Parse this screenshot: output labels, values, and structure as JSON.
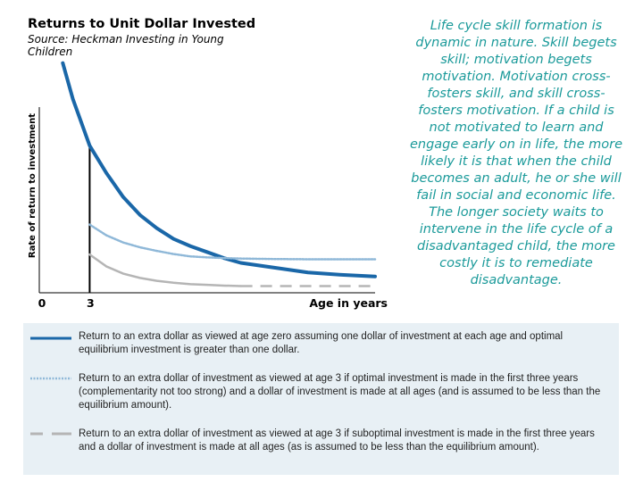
{
  "header": {
    "title": "Returns to Unit Dollar Invested",
    "source": "Source: Heckman Investing in Young Children"
  },
  "quote": "Life cycle skill formation is dynamic in nature. Skill begets skill; motivation begets motivation. Motivation cross-fosters skill, and skill cross-fosters motivation. If a child is not motivated to learn and engage early on in life, the more likely it is that when the child becomes an adult, he or she will fail in social and economic life. The longer society waits to intervene in the life cycle of a disadvantaged child, the more costly it is to remediate disadvantage.",
  "colors": {
    "quote": "#1b9a9a",
    "series_solid": "#1a67a8",
    "series_dotted": "#8fb8d8",
    "series_dashed": "#b5b5b5",
    "legend_bg": "#e8f0f5"
  },
  "chart_data": {
    "type": "line",
    "title": "Returns to Unit Dollar Invested",
    "xlabel": "Age in years",
    "ylabel": "Rate of return to investment",
    "x_ticks": [
      {
        "value": 0,
        "label": "0"
      },
      {
        "value": 3,
        "label": "3"
      }
    ],
    "xlim": [
      0,
      20
    ],
    "ylim": [
      0,
      10
    ],
    "marker_x": 3,
    "series": [
      {
        "name": "Return to an extra dollar as viewed at age zero assuming one dollar of investment at each age and optimal equilibrium investment is greater than one dollar.",
        "style": "solid",
        "x": [
          1.4,
          2.0,
          3.0,
          4.0,
          5.0,
          6.0,
          7.0,
          8.0,
          9.0,
          10.0,
          11.0,
          12.0,
          14.0,
          16.0,
          18.0,
          20.0
        ],
        "y": [
          9.6,
          8.1,
          6.15,
          5.0,
          4.0,
          3.25,
          2.7,
          2.25,
          1.95,
          1.7,
          1.45,
          1.25,
          1.05,
          0.85,
          0.75,
          0.68
        ]
      },
      {
        "name": "Return to an extra dollar of investment as viewed at age 3 if optimal investment is made in the first three years (complementarity not too strong) and a dollar of investment is made at all ages (and is assumed to be less than the equilibrium amount).",
        "style": "dotted",
        "x": [
          3.0,
          4.0,
          5.0,
          6.0,
          7.0,
          8.0,
          9.0,
          10.0,
          11.0,
          12.0,
          14.0,
          16.0,
          18.0,
          20.0
        ],
        "y": [
          2.85,
          2.4,
          2.1,
          1.9,
          1.75,
          1.62,
          1.52,
          1.48,
          1.45,
          1.43,
          1.41,
          1.4,
          1.4,
          1.4
        ]
      },
      {
        "name": "Return to an extra dollar of investment as viewed at age 3 if suboptimal investment is made in the first three years and a dollar of investment is made at all ages (as is assumed to be less than the equilibrium amount).",
        "style": "dashed",
        "x": [
          3.0,
          4.0,
          5.0,
          6.0,
          7.0,
          8.0,
          9.0,
          10.0,
          11.0,
          12.0,
          14.0,
          16.0,
          18.0,
          20.0
        ],
        "y": [
          1.6,
          1.1,
          0.8,
          0.62,
          0.5,
          0.42,
          0.36,
          0.33,
          0.3,
          0.28,
          0.28,
          0.28,
          0.28,
          0.28
        ]
      }
    ]
  }
}
